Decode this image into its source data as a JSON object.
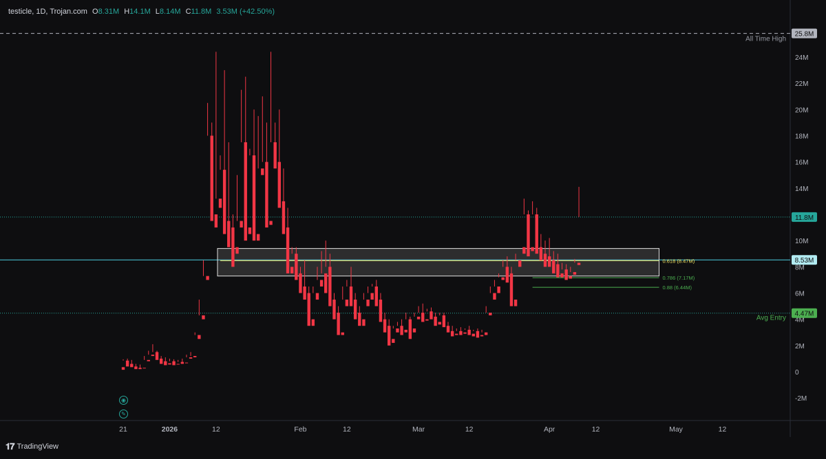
{
  "legend": {
    "symbol": "testicle, 1D, Trojan.com",
    "open_key": "O",
    "open": "8.31M",
    "high_key": "H",
    "high": "14.1M",
    "low_key": "L",
    "low": "8.14M",
    "close_key": "C",
    "close": "11.8M",
    "change": "3.53M (+42.50%)"
  },
  "footer": {
    "brand": "TradingView"
  },
  "colors": {
    "up": "#26a69a",
    "down": "#f23645",
    "background": "#0e0e10",
    "grid": "#1c1f26",
    "label_green": "#26a69a",
    "fib_yellow": "#f5e663",
    "fib_green": "#4caf50"
  },
  "chart_data": {
    "type": "candlestick",
    "ylim": [
      -3,
      27
    ],
    "y_ticks": [
      {
        "value": 24,
        "label": "24M"
      },
      {
        "value": 22,
        "label": "22M"
      },
      {
        "value": 20,
        "label": "20M"
      },
      {
        "value": 18,
        "label": "18M"
      },
      {
        "value": 16,
        "label": "16M"
      },
      {
        "value": 14,
        "label": "14M"
      },
      {
        "value": 10,
        "label": "10M"
      },
      {
        "value": 8,
        "label": "8M"
      },
      {
        "value": 6,
        "label": "6M"
      },
      {
        "value": 4,
        "label": "4M"
      },
      {
        "value": 2,
        "label": "2M"
      },
      {
        "value": 0,
        "label": "0"
      },
      {
        "value": -2,
        "label": "-2M"
      }
    ],
    "x_ticks": [
      {
        "index": 0,
        "label": "21"
      },
      {
        "index": 11,
        "label": "2026"
      },
      {
        "index": 22,
        "label": "12"
      },
      {
        "index": 42,
        "label": "Feb"
      },
      {
        "index": 53,
        "label": "12"
      },
      {
        "index": 70,
        "label": "Mar"
      },
      {
        "index": 82,
        "label": "12"
      },
      {
        "index": 101,
        "label": "Apr"
      },
      {
        "index": 112,
        "label": "12"
      },
      {
        "index": 131,
        "label": "May"
      },
      {
        "index": 142,
        "label": "12"
      }
    ],
    "price_lines": [
      {
        "value": 25.8,
        "label": "25.8M",
        "caption": "All Time High",
        "style": "ath"
      },
      {
        "value": 11.8,
        "label": "11.8M",
        "caption": "",
        "style": "last"
      },
      {
        "value": 8.53,
        "label": "8.53M",
        "caption": "",
        "style": "current"
      },
      {
        "value": 4.47,
        "label": "4.47M",
        "caption": "Avg Entry",
        "style": "entry"
      }
    ],
    "zone": {
      "top": 9.4,
      "bottom": 7.3,
      "start_index": 23,
      "end_index": 127
    },
    "fib_levels": [
      {
        "value": 8.47,
        "label": "0.618 (8.47M)",
        "color": "#f5e663",
        "start_index": 23
      },
      {
        "value": 7.17,
        "label": "0.786 (7.17M)",
        "color": "#4caf50",
        "start_index": 97
      },
      {
        "value": 6.44,
        "label": "0.88 (6.44M)",
        "color": "#4caf50",
        "start_index": 97
      }
    ],
    "candles": [
      [
        0.35,
        0.95,
        0.85,
        0.15
      ],
      [
        0.85,
        1.0,
        0.6,
        0.4
      ],
      [
        0.6,
        0.9,
        0.4,
        0.35
      ],
      [
        0.4,
        0.6,
        0.25,
        0.2
      ],
      [
        0.3,
        0.55,
        0.25,
        0.2
      ],
      [
        0.3,
        1.2,
        0.9,
        0.25
      ],
      [
        0.9,
        1.6,
        1.3,
        0.8
      ],
      [
        1.3,
        2.1,
        1.5,
        1.2
      ],
      [
        1.5,
        1.6,
        1.0,
        0.9
      ],
      [
        1.0,
        1.2,
        0.8,
        0.6
      ],
      [
        0.8,
        1.1,
        0.65,
        0.5
      ],
      [
        0.65,
        1.0,
        0.8,
        0.55
      ],
      [
        0.8,
        0.95,
        0.6,
        0.5
      ],
      [
        0.6,
        0.9,
        0.75,
        0.55
      ],
      [
        0.75,
        1.0,
        0.7,
        0.6
      ],
      [
        0.7,
        1.3,
        1.1,
        0.65
      ],
      [
        1.1,
        1.5,
        1.2,
        1.0
      ],
      [
        1.2,
        3.0,
        2.8,
        1.1
      ],
      [
        2.8,
        5.5,
        4.3,
        2.5
      ],
      [
        4.3,
        8.5,
        7.3,
        4.0
      ],
      [
        7.3,
        20.5,
        18.0,
        7.0
      ],
      [
        18.0,
        19.0,
        12.0,
        11.5
      ],
      [
        12.0,
        24.4,
        13.2,
        11.0
      ],
      [
        13.2,
        16.5,
        15.4,
        12.5
      ],
      [
        15.4,
        23.0,
        11.5,
        10.5
      ],
      [
        11.5,
        17.5,
        11.0,
        9.5
      ],
      [
        11.0,
        12.0,
        9.5,
        8.0
      ],
      [
        9.5,
        15.0,
        11.5,
        9.0
      ],
      [
        11.5,
        21.5,
        17.5,
        11.0
      ],
      [
        17.5,
        22.5,
        11.0,
        10.0
      ],
      [
        11.0,
        17.0,
        16.5,
        10.5
      ],
      [
        16.5,
        20.0,
        10.5,
        10.0
      ],
      [
        10.5,
        19.5,
        15.5,
        10.0
      ],
      [
        15.5,
        21.0,
        16.0,
        15.0
      ],
      [
        16.0,
        19.0,
        11.5,
        11.0
      ],
      [
        11.5,
        24.4,
        17.5,
        11.2
      ],
      [
        17.5,
        19.0,
        16.0,
        15.5
      ],
      [
        16.0,
        20.0,
        13.0,
        12.5
      ],
      [
        13.0,
        15.5,
        11.0,
        10.5
      ],
      [
        11.0,
        12.5,
        8.0,
        7.5
      ],
      [
        8.0,
        9.5,
        9.0,
        7.5
      ],
      [
        9.0,
        9.5,
        7.5,
        7.0
      ],
      [
        7.5,
        8.0,
        6.5,
        6.0
      ],
      [
        6.5,
        8.5,
        6.0,
        5.5
      ],
      [
        6.0,
        6.5,
        4.0,
        3.5
      ],
      [
        4.0,
        6.5,
        6.0,
        3.5
      ],
      [
        6.0,
        8.0,
        7.0,
        5.5
      ],
      [
        7.0,
        9.2,
        7.5,
        6.5
      ],
      [
        7.5,
        10.0,
        8.0,
        6.0
      ],
      [
        8.0,
        9.0,
        5.5,
        5.0
      ],
      [
        5.5,
        6.0,
        4.5,
        4.0
      ],
      [
        4.5,
        5.0,
        3.0,
        2.8
      ],
      [
        3.0,
        6.5,
        5.5,
        2.8
      ],
      [
        5.5,
        7.0,
        6.5,
        5.0
      ],
      [
        6.5,
        8.0,
        5.5,
        5.0
      ],
      [
        5.5,
        6.0,
        4.5,
        4.0
      ],
      [
        4.5,
        5.0,
        4.0,
        3.5
      ],
      [
        4.0,
        6.0,
        5.5,
        3.5
      ],
      [
        5.5,
        6.5,
        6.0,
        5.0
      ],
      [
        6.0,
        6.7,
        6.5,
        5.5
      ],
      [
        6.5,
        7.0,
        5.5,
        5.0
      ],
      [
        5.5,
        6.0,
        4.0,
        3.8
      ],
      [
        4.0,
        4.5,
        3.5,
        3.0
      ],
      [
        3.5,
        4.0,
        2.5,
        2.0
      ],
      [
        2.5,
        3.5,
        3.3,
        2.2
      ],
      [
        3.3,
        3.8,
        3.5,
        3.0
      ],
      [
        3.5,
        4.0,
        3.2,
        2.8
      ],
      [
        3.2,
        4.5,
        4.0,
        3.0
      ],
      [
        4.0,
        4.2,
        3.3,
        2.5
      ],
      [
        3.3,
        4.5,
        4.2,
        3.0
      ],
      [
        4.2,
        5.0,
        4.5,
        4.0
      ],
      [
        4.5,
        5.2,
        4.0,
        3.8
      ],
      [
        4.0,
        4.8,
        4.6,
        3.9
      ],
      [
        4.6,
        4.9,
        4.2,
        4.0
      ],
      [
        4.2,
        4.5,
        3.8,
        3.5
      ],
      [
        3.8,
        4.5,
        4.3,
        3.6
      ],
      [
        4.3,
        4.5,
        3.5,
        3.4
      ],
      [
        3.5,
        3.8,
        3.1,
        3.0
      ],
      [
        3.1,
        3.5,
        2.9,
        2.7
      ],
      [
        2.9,
        3.3,
        3.1,
        2.8
      ],
      [
        3.1,
        3.4,
        3.0,
        2.8
      ],
      [
        3.0,
        3.3,
        3.2,
        2.9
      ],
      [
        3.2,
        3.5,
        2.9,
        2.8
      ],
      [
        2.9,
        3.2,
        3.1,
        2.7
      ],
      [
        3.1,
        3.3,
        2.8,
        2.6
      ],
      [
        2.8,
        3.2,
        3.0,
        2.7
      ],
      [
        3.0,
        5.0,
        4.5,
        2.8
      ],
      [
        4.5,
        6.5,
        6.0,
        4.3
      ],
      [
        6.0,
        7.0,
        6.5,
        5.5
      ],
      [
        6.5,
        7.5,
        7.2,
        6.0
      ],
      [
        7.2,
        8.5,
        8.0,
        7.0
      ],
      [
        8.0,
        8.8,
        7.5,
        6.8
      ],
      [
        7.5,
        8.0,
        5.5,
        5.0
      ],
      [
        5.5,
        9.0,
        8.5,
        5.0
      ],
      [
        8.5,
        9.5,
        9.5,
        8.0
      ],
      [
        9.5,
        13.2,
        12.0,
        9.0
      ],
      [
        12.0,
        12.3,
        9.5,
        8.8
      ],
      [
        9.5,
        13.0,
        12.0,
        9.2
      ],
      [
        12.0,
        12.5,
        9.5,
        9.0
      ],
      [
        9.5,
        10.5,
        9.0,
        8.5
      ],
      [
        9.0,
        10.0,
        8.8,
        8.0
      ],
      [
        8.8,
        10.2,
        8.5,
        8.0
      ],
      [
        8.5,
        9.2,
        8.2,
        7.5
      ],
      [
        8.2,
        9.0,
        7.5,
        7.2
      ],
      [
        7.5,
        8.3,
        7.8,
        7.2
      ],
      [
        7.8,
        8.2,
        7.3,
        7.0
      ],
      [
        7.3,
        8.0,
        7.6,
        7.1
      ],
      [
        7.6,
        8.6,
        8.31,
        7.4
      ],
      [
        8.31,
        14.1,
        11.8,
        8.14
      ]
    ]
  }
}
